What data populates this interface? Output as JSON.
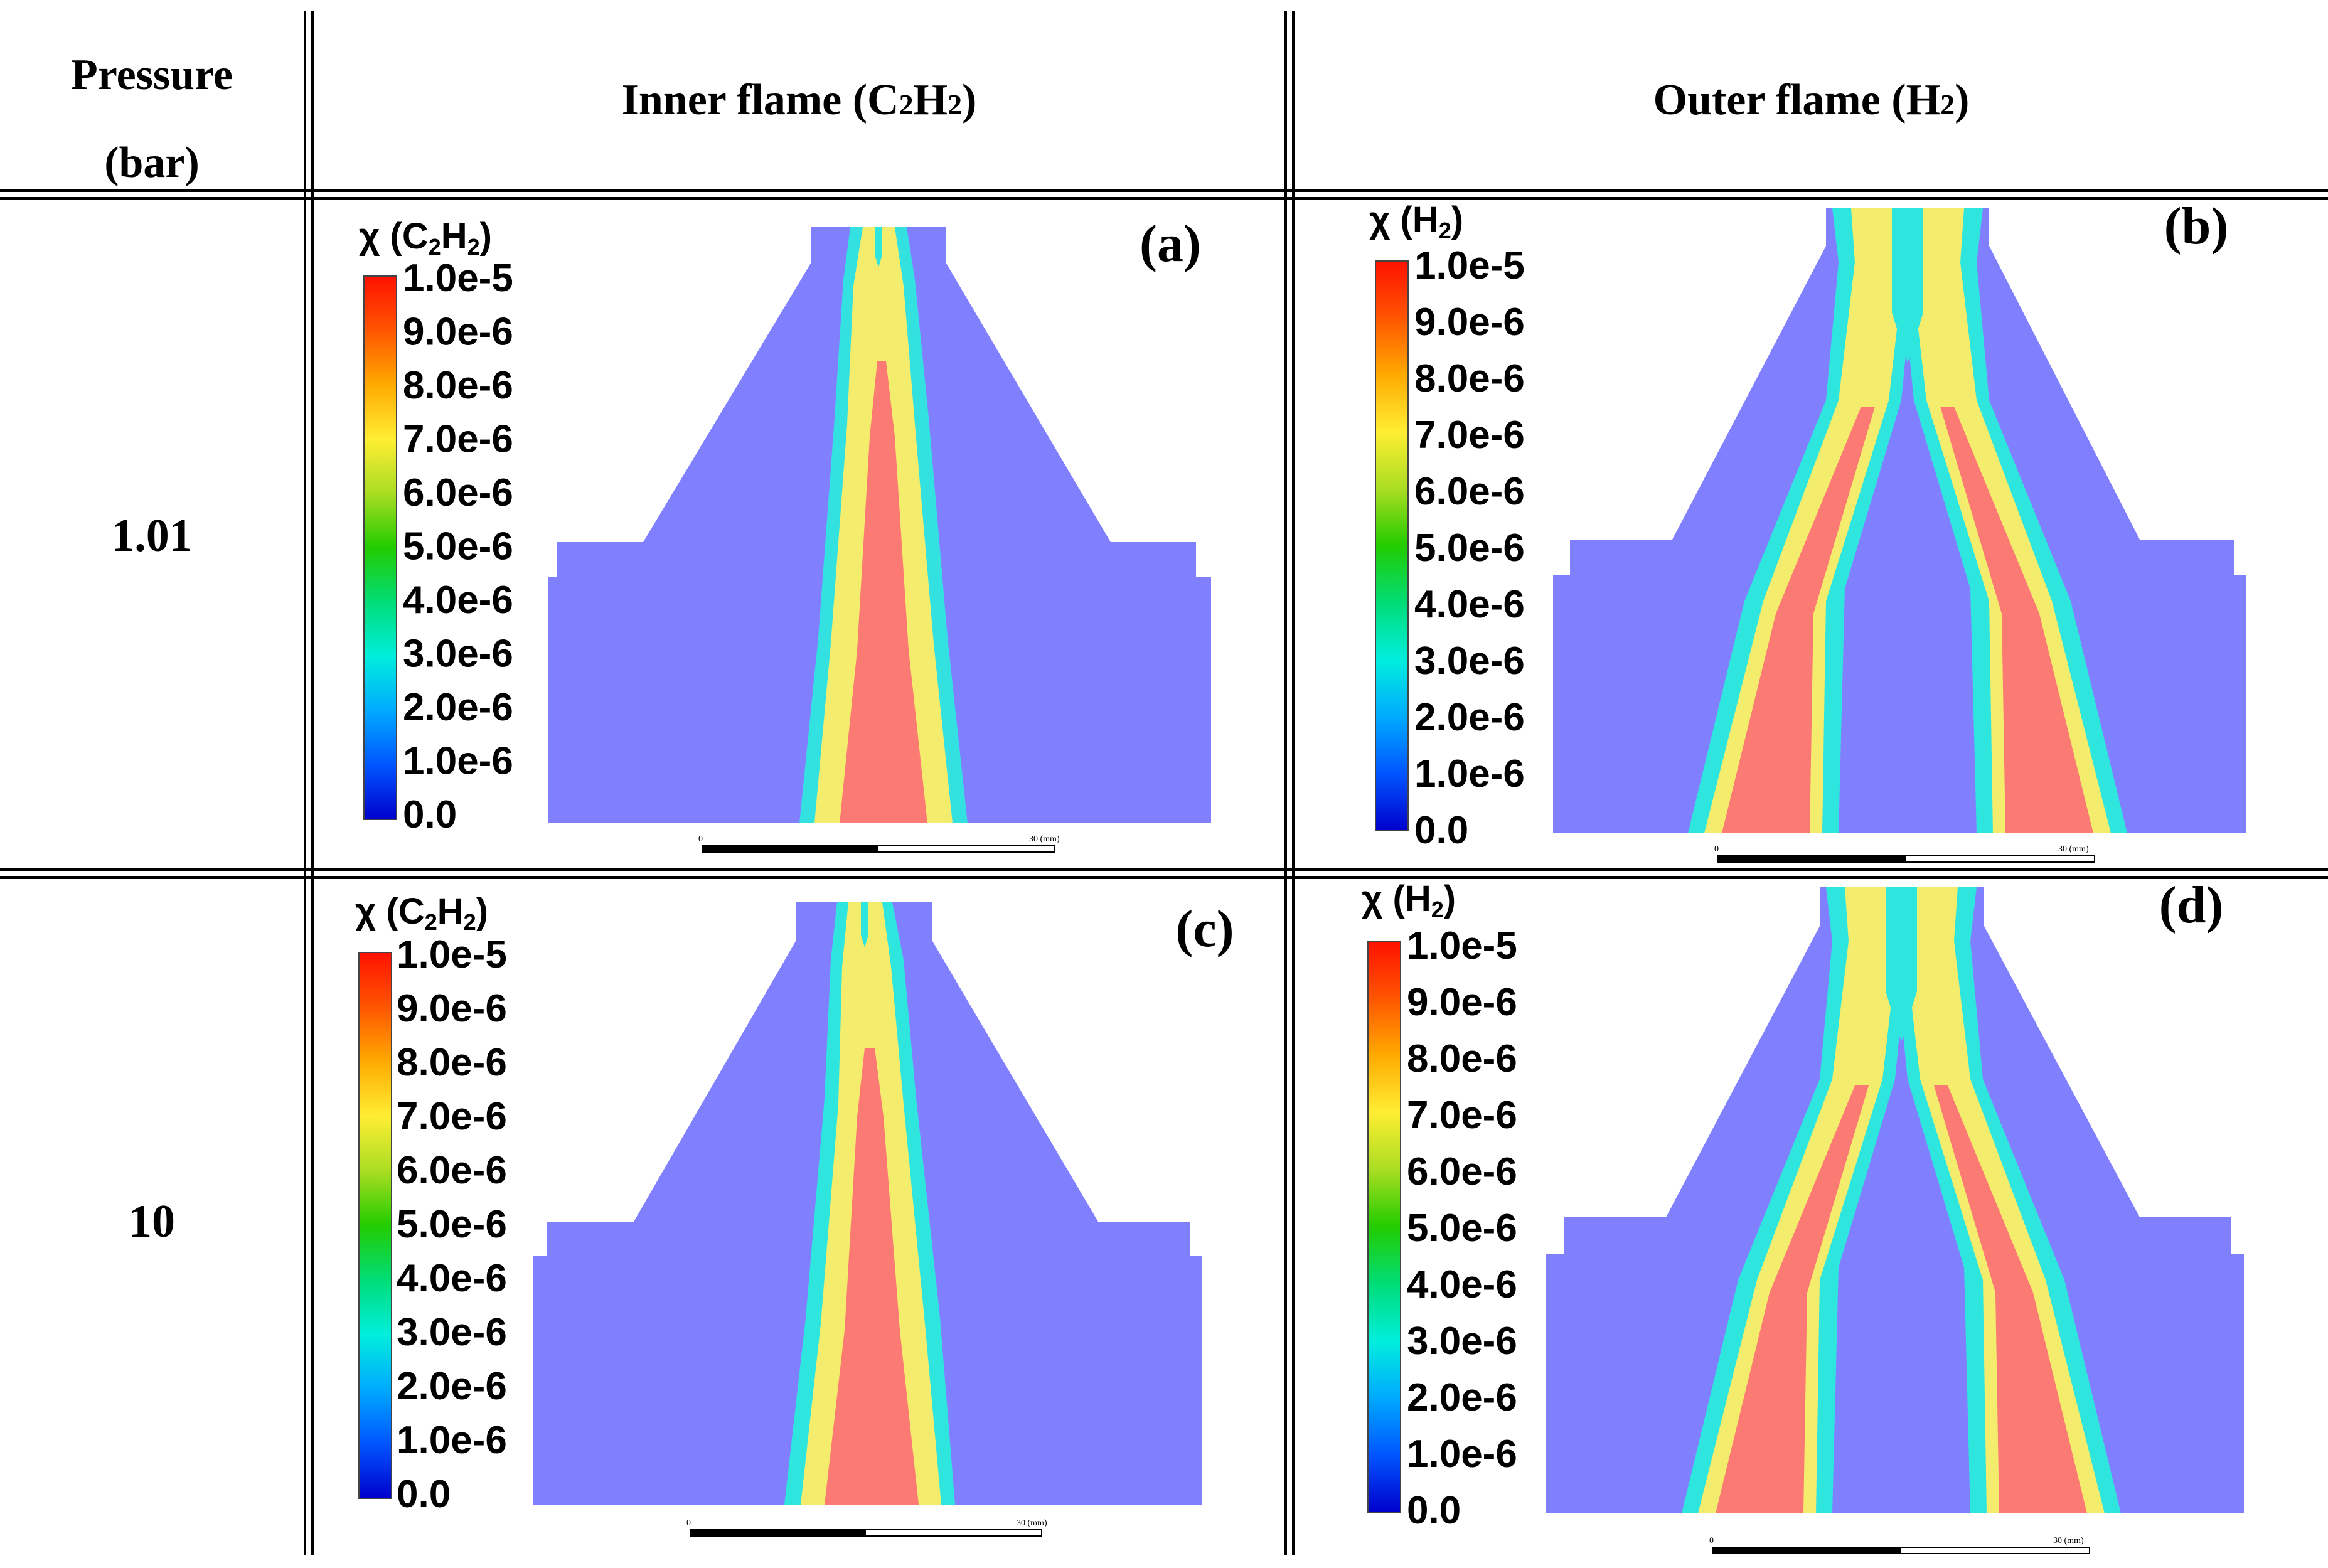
{
  "header": {
    "pressure_line1": "Pressure",
    "pressure_line2": "(bar)",
    "inner_prefix": "Inner flame (C",
    "inner_s1": "2",
    "inner_mid": "H",
    "inner_s2": "2",
    "inner_suffix": ")",
    "outer_prefix": "Outer flame (H",
    "outer_s1": "2",
    "outer_suffix": ")"
  },
  "rows": [
    {
      "pressure": "1.01"
    },
    {
      "pressure": "10"
    }
  ],
  "panels": [
    {
      "label": "(a)",
      "species": "C2H2",
      "title_prefix": "χ (C",
      "s1": "2",
      "mid": "H",
      "s2": "2",
      "end": ")"
    },
    {
      "label": "(b)",
      "species": "H2",
      "title_prefix": "χ (H",
      "s1": "2",
      "mid": "",
      "s2": "",
      "end": ")"
    },
    {
      "label": "(c)",
      "species": "C2H2",
      "title_prefix": "χ (C",
      "s1": "2",
      "mid": "H",
      "s2": "2",
      "end": ")"
    },
    {
      "label": "(d)",
      "species": "H2",
      "title_prefix": "χ (H",
      "s1": "2",
      "mid": "",
      "s2": "",
      "end": ")"
    }
  ],
  "colorbar_ticks": [
    "1.0e-5",
    "9.0e-6",
    "8.0e-6",
    "7.0e-6",
    "6.0e-6",
    "5.0e-6",
    "4.0e-6",
    "3.0e-6",
    "2.0e-6",
    "1.0e-6",
    "0.0"
  ],
  "scale_bar": {
    "start": "0",
    "end": "30 (mm)"
  },
  "colors": {
    "background_field": "#8080ff",
    "colormap": [
      "#0000cc",
      "#0066ff",
      "#00e5ff",
      "#00cc66",
      "#33cc00",
      "#ccee33",
      "#ffee44",
      "#ffaa00",
      "#ff5500",
      "#ff1a00"
    ],
    "core": "#fb7a73",
    "mid": "#f4ec6c",
    "edge": "#2fe6df"
  }
}
